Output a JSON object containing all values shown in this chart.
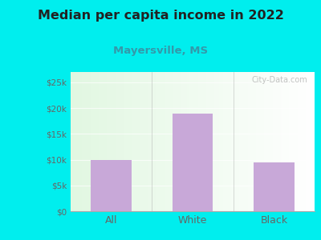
{
  "title": "Median per capita income in 2022",
  "subtitle": "Mayersville, MS",
  "categories": [
    "All",
    "White",
    "Black"
  ],
  "values": [
    10000,
    19000,
    9500
  ],
  "bar_color": "#C8A8D8",
  "outer_bg": "#00EEEE",
  "title_color": "#222222",
  "subtitle_color": "#3399AA",
  "tick_color": "#666666",
  "ylim": [
    0,
    27000
  ],
  "yticks": [
    0,
    5000,
    10000,
    15000,
    20000,
    25000
  ],
  "ytick_labels": [
    "$0",
    "$5k",
    "$10k",
    "$15k",
    "$20k",
    "$25k"
  ],
  "watermark": "City-Data.com"
}
